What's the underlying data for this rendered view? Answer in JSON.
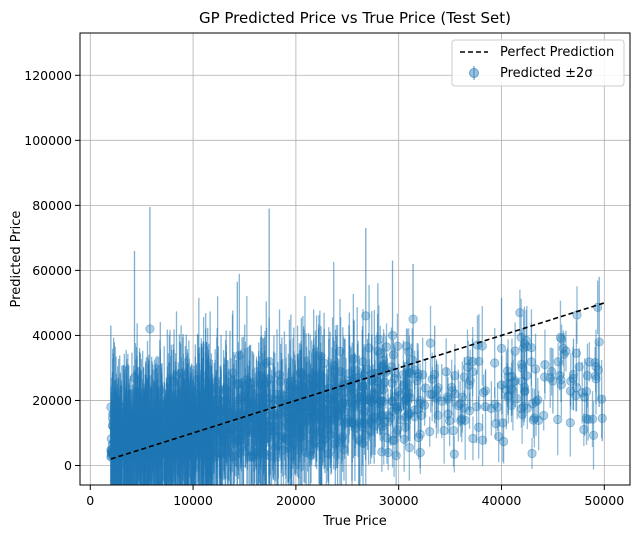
{
  "chart_data": {
    "type": "scatter",
    "title": "GP Predicted Price vs True Price (Test Set)",
    "xlabel": "True Price",
    "ylabel": "Predicted Price",
    "xlim": [
      -1000,
      52500
    ],
    "ylim": [
      -6000,
      133000
    ],
    "xticks": [
      0,
      10000,
      20000,
      30000,
      40000,
      50000
    ],
    "yticks": [
      0,
      20000,
      40000,
      60000,
      80000,
      100000,
      120000
    ],
    "grid": true,
    "legend_position": "top-right",
    "legend": [
      {
        "label": "Perfect Prediction",
        "style": "dashed-line",
        "color": "#000000"
      },
      {
        "label": "Predicted ±2σ",
        "style": "marker-errorbar",
        "color": "#1f77b4"
      }
    ],
    "series": [
      {
        "name": "Perfect Prediction",
        "kind": "line",
        "x": [
          2000,
          50000
        ],
        "y": [
          2000,
          50000
        ]
      },
      {
        "name": "Predicted ±2σ",
        "kind": "errorbar-scatter",
        "approx_point_count": 1500,
        "note": "dense cloud; representative points with ±2σ error bars",
        "points": [
          {
            "x": 2000,
            "y": 18000,
            "err": 50000
          },
          {
            "x": 2500,
            "y": 12000,
            "err": 43000
          },
          {
            "x": 4300,
            "y": 27000,
            "err": 78000
          },
          {
            "x": 5800,
            "y": 42000,
            "err": 75000
          },
          {
            "x": 14300,
            "y": 25000,
            "err": 63000
          },
          {
            "x": 17400,
            "y": 32000,
            "err": 94000
          },
          {
            "x": 26800,
            "y": 46000,
            "err": 54000
          },
          {
            "x": 29400,
            "y": 40000,
            "err": 46000
          },
          {
            "x": 31400,
            "y": 45000,
            "err": 34000
          },
          {
            "x": 33500,
            "y": 28000,
            "err": 30000
          },
          {
            "x": 37800,
            "y": 32000,
            "err": 29000
          },
          {
            "x": 40000,
            "y": 36000,
            "err": 31000
          },
          {
            "x": 42000,
            "y": 30000,
            "err": 24000
          },
          {
            "x": 45000,
            "y": 26000,
            "err": 20000
          },
          {
            "x": 47000,
            "y": 28000,
            "err": 22000
          },
          {
            "x": 49500,
            "y": 38000,
            "err": 40000
          },
          {
            "x": 49800,
            "y": 14500,
            "err": 14000
          }
        ]
      }
    ]
  }
}
